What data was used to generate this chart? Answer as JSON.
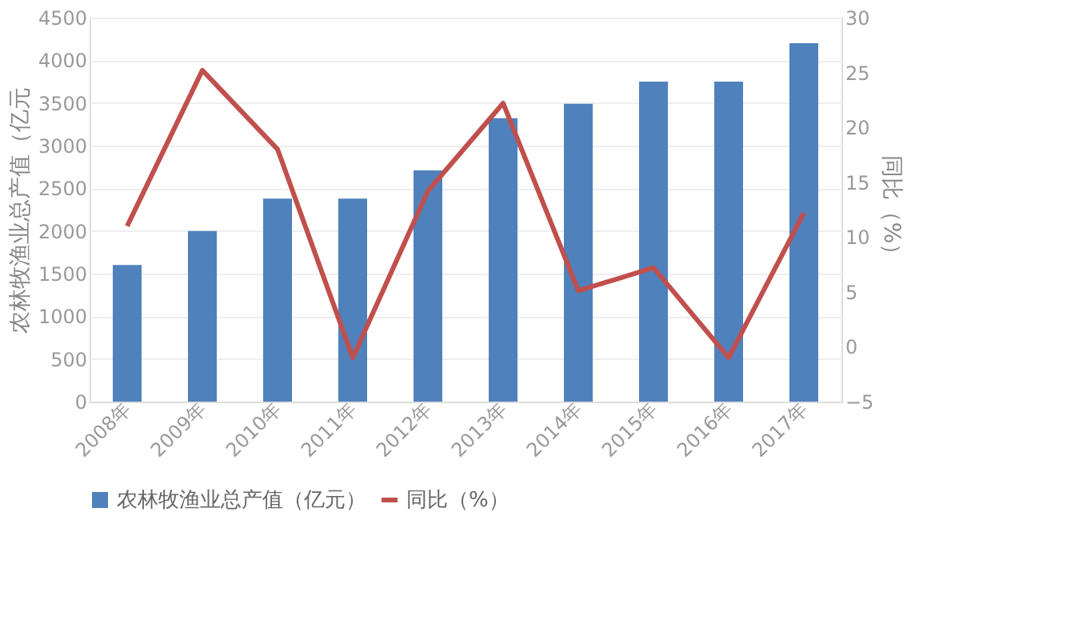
{
  "chart_data": {
    "type": "bar",
    "categories": [
      "2008年",
      "2009年",
      "2010年",
      "2011年",
      "2012年",
      "2013年",
      "2014年",
      "2015年",
      "2016年",
      "2017年"
    ],
    "ylabel": "农林牧渔业总产值（亿元",
    "y2label": "同比（%）",
    "series": [
      {
        "name": "农林牧渔业总产值（亿元）",
        "color": "#4f81bd",
        "values": [
          1600,
          2000,
          2380,
          2380,
          2710,
          3320,
          3490,
          3750,
          3750,
          4200
        ]
      },
      {
        "name": "同比（%）",
        "type": "line",
        "axis": "y2",
        "color": "#c0504d",
        "values": [
          11.0,
          25.2,
          18.0,
          -1.0,
          14.2,
          22.2,
          5.1,
          7.2,
          -1.0,
          12.2
        ]
      }
    ],
    "ylim": [
      0,
      4500
    ],
    "yticks": [
      0,
      500,
      1000,
      1500,
      2000,
      2500,
      3000,
      3500,
      4000,
      4500
    ],
    "y2lim": [
      -5,
      30
    ],
    "y2ticks": [
      -5,
      0,
      5,
      10,
      15,
      20,
      25,
      30
    ],
    "grid": "y",
    "legend": "bottom",
    "marker": "none",
    "line_style": "solid"
  }
}
